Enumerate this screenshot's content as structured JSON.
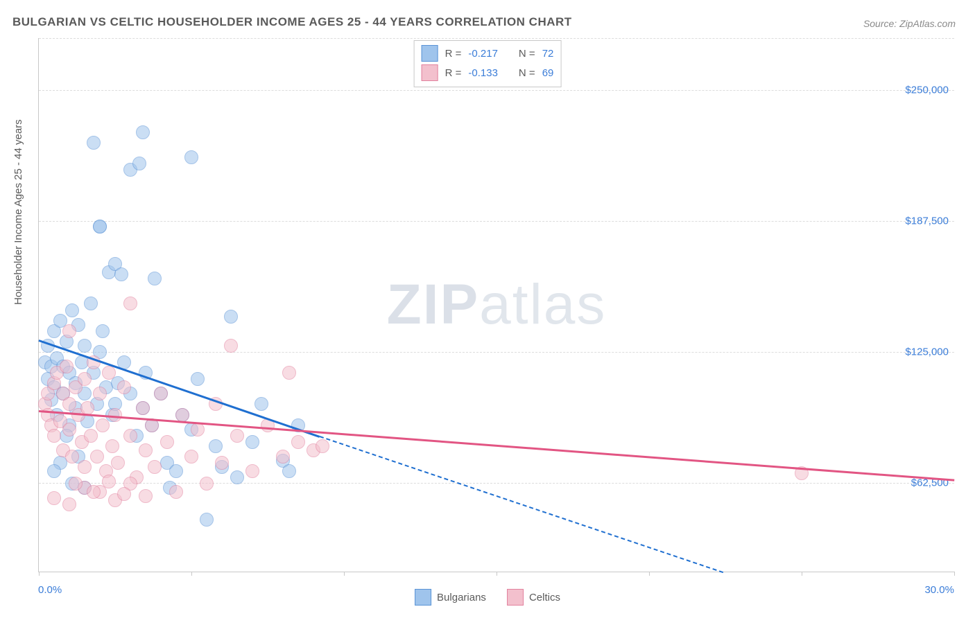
{
  "title": "BULGARIAN VS CELTIC HOUSEHOLDER INCOME AGES 25 - 44 YEARS CORRELATION CHART",
  "source": "Source: ZipAtlas.com",
  "watermark_bold": "ZIP",
  "watermark_light": "atlas",
  "chart": {
    "type": "scatter",
    "background_color": "#ffffff",
    "grid_color": "#dcdcdc",
    "axis_color": "#c8c8c8",
    "label_color": "#5a5a5a",
    "value_color": "#3b7dd8",
    "ylabel": "Householder Income Ages 25 - 44 years",
    "label_fontsize": 15,
    "title_fontsize": 17,
    "xlim": [
      0,
      30
    ],
    "ylim": [
      20000,
      275000
    ],
    "xlim_labels": [
      "0.0%",
      "30.0%"
    ],
    "yticks": [
      62500,
      125000,
      187500,
      250000
    ],
    "ytick_labels": [
      "$62,500",
      "$125,000",
      "$187,500",
      "$250,000"
    ],
    "xtick_positions": [
      0,
      5,
      10,
      15,
      20,
      25,
      30
    ],
    "marker_radius": 9,
    "marker_opacity": 0.55,
    "series": [
      {
        "name": "Bulgarians",
        "fill": "#9fc4ec",
        "stroke": "#5a93d6",
        "trend_color": "#1f6fd0",
        "R": "-0.217",
        "N": "72",
        "trend": {
          "x1": 0,
          "y1": 131000,
          "x2": 9.2,
          "y2": 85000,
          "dash_after_x": 9.2,
          "x2_dash": 26.5,
          "y2_dash": 0
        },
        "points": [
          [
            0.2,
            120000
          ],
          [
            0.3,
            112000
          ],
          [
            0.3,
            128000
          ],
          [
            0.4,
            118000
          ],
          [
            0.4,
            102000
          ],
          [
            0.5,
            135000
          ],
          [
            0.5,
            108000
          ],
          [
            0.6,
            122000
          ],
          [
            0.6,
            95000
          ],
          [
            0.7,
            140000
          ],
          [
            0.8,
            118000
          ],
          [
            0.8,
            105000
          ],
          [
            0.9,
            130000
          ],
          [
            1.0,
            115000
          ],
          [
            1.0,
            90000
          ],
          [
            1.1,
            145000
          ],
          [
            1.2,
            110000
          ],
          [
            1.2,
            98000
          ],
          [
            1.3,
            138000
          ],
          [
            1.4,
            120000
          ],
          [
            1.5,
            105000
          ],
          [
            1.5,
            128000
          ],
          [
            1.6,
            92000
          ],
          [
            1.7,
            148000
          ],
          [
            1.8,
            115000
          ],
          [
            1.9,
            100000
          ],
          [
            2.0,
            125000
          ],
          [
            2.1,
            135000
          ],
          [
            2.2,
            108000
          ],
          [
            2.3,
            163000
          ],
          [
            2.4,
            95000
          ],
          [
            2.5,
            167000
          ],
          [
            2.6,
            110000
          ],
          [
            2.7,
            162000
          ],
          [
            2.8,
            120000
          ],
          [
            3.0,
            105000
          ],
          [
            3.0,
            212000
          ],
          [
            3.2,
            85000
          ],
          [
            3.3,
            215000
          ],
          [
            3.4,
            98000
          ],
          [
            3.4,
            230000
          ],
          [
            3.5,
            115000
          ],
          [
            3.7,
            90000
          ],
          [
            3.8,
            160000
          ],
          [
            4.0,
            105000
          ],
          [
            4.2,
            72000
          ],
          [
            4.3,
            60000
          ],
          [
            4.5,
            68000
          ],
          [
            4.7,
            95000
          ],
          [
            5.0,
            88000
          ],
          [
            5.0,
            218000
          ],
          [
            5.2,
            112000
          ],
          [
            5.5,
            45000
          ],
          [
            5.8,
            80000
          ],
          [
            6.0,
            70000
          ],
          [
            6.3,
            142000
          ],
          [
            6.5,
            65000
          ],
          [
            7.0,
            82000
          ],
          [
            7.3,
            100000
          ],
          [
            8.0,
            73000
          ],
          [
            8.2,
            68000
          ],
          [
            8.5,
            90000
          ],
          [
            1.8,
            225000
          ],
          [
            2.0,
            185000
          ],
          [
            1.5,
            60000
          ],
          [
            2.0,
            185000
          ],
          [
            2.5,
            100000
          ],
          [
            1.3,
            75000
          ],
          [
            1.1,
            62000
          ],
          [
            0.9,
            85000
          ],
          [
            0.7,
            72000
          ],
          [
            0.5,
            68000
          ]
        ]
      },
      {
        "name": "Celtics",
        "fill": "#f3c0cd",
        "stroke": "#e2819e",
        "trend_color": "#e25583",
        "R": "-0.133",
        "N": "69",
        "trend": {
          "x1": 0,
          "y1": 97000,
          "x2": 30,
          "y2": 64000
        },
        "points": [
          [
            0.2,
            100000
          ],
          [
            0.3,
            95000
          ],
          [
            0.3,
            105000
          ],
          [
            0.4,
            90000
          ],
          [
            0.5,
            110000
          ],
          [
            0.5,
            85000
          ],
          [
            0.6,
            115000
          ],
          [
            0.7,
            92000
          ],
          [
            0.8,
            105000
          ],
          [
            0.8,
            78000
          ],
          [
            0.9,
            118000
          ],
          [
            1.0,
            88000
          ],
          [
            1.0,
            100000
          ],
          [
            1.1,
            75000
          ],
          [
            1.2,
            108000
          ],
          [
            1.3,
            95000
          ],
          [
            1.4,
            82000
          ],
          [
            1.5,
            112000
          ],
          [
            1.5,
            70000
          ],
          [
            1.6,
            98000
          ],
          [
            1.7,
            85000
          ],
          [
            1.8,
            120000
          ],
          [
            1.9,
            75000
          ],
          [
            2.0,
            105000
          ],
          [
            2.1,
            90000
          ],
          [
            2.2,
            68000
          ],
          [
            2.3,
            115000
          ],
          [
            2.4,
            80000
          ],
          [
            2.5,
            95000
          ],
          [
            2.6,
            72000
          ],
          [
            2.8,
            108000
          ],
          [
            3.0,
            85000
          ],
          [
            3.0,
            148000
          ],
          [
            3.2,
            65000
          ],
          [
            3.4,
            98000
          ],
          [
            3.5,
            78000
          ],
          [
            3.7,
            90000
          ],
          [
            3.8,
            70000
          ],
          [
            4.0,
            105000
          ],
          [
            4.2,
            82000
          ],
          [
            4.5,
            58000
          ],
          [
            4.7,
            95000
          ],
          [
            5.0,
            75000
          ],
          [
            5.2,
            88000
          ],
          [
            5.5,
            62000
          ],
          [
            5.8,
            100000
          ],
          [
            6.0,
            72000
          ],
          [
            6.3,
            128000
          ],
          [
            6.5,
            85000
          ],
          [
            7.0,
            68000
          ],
          [
            7.5,
            90000
          ],
          [
            8.0,
            75000
          ],
          [
            8.2,
            115000
          ],
          [
            8.5,
            82000
          ],
          [
            9.0,
            78000
          ],
          [
            9.3,
            80000
          ],
          [
            0.5,
            55000
          ],
          [
            1.0,
            52000
          ],
          [
            1.5,
            60000
          ],
          [
            2.0,
            58000
          ],
          [
            2.5,
            54000
          ],
          [
            3.0,
            62000
          ],
          [
            3.5,
            56000
          ],
          [
            1.2,
            62000
          ],
          [
            1.8,
            58000
          ],
          [
            2.3,
            63000
          ],
          [
            2.8,
            57000
          ],
          [
            25.0,
            67000
          ],
          [
            1.0,
            135000
          ]
        ]
      }
    ]
  },
  "legend": {
    "items": [
      {
        "label": "Bulgarians",
        "fill": "#9fc4ec",
        "stroke": "#5a93d6"
      },
      {
        "label": "Celtics",
        "fill": "#f3c0cd",
        "stroke": "#e2819e"
      }
    ]
  }
}
